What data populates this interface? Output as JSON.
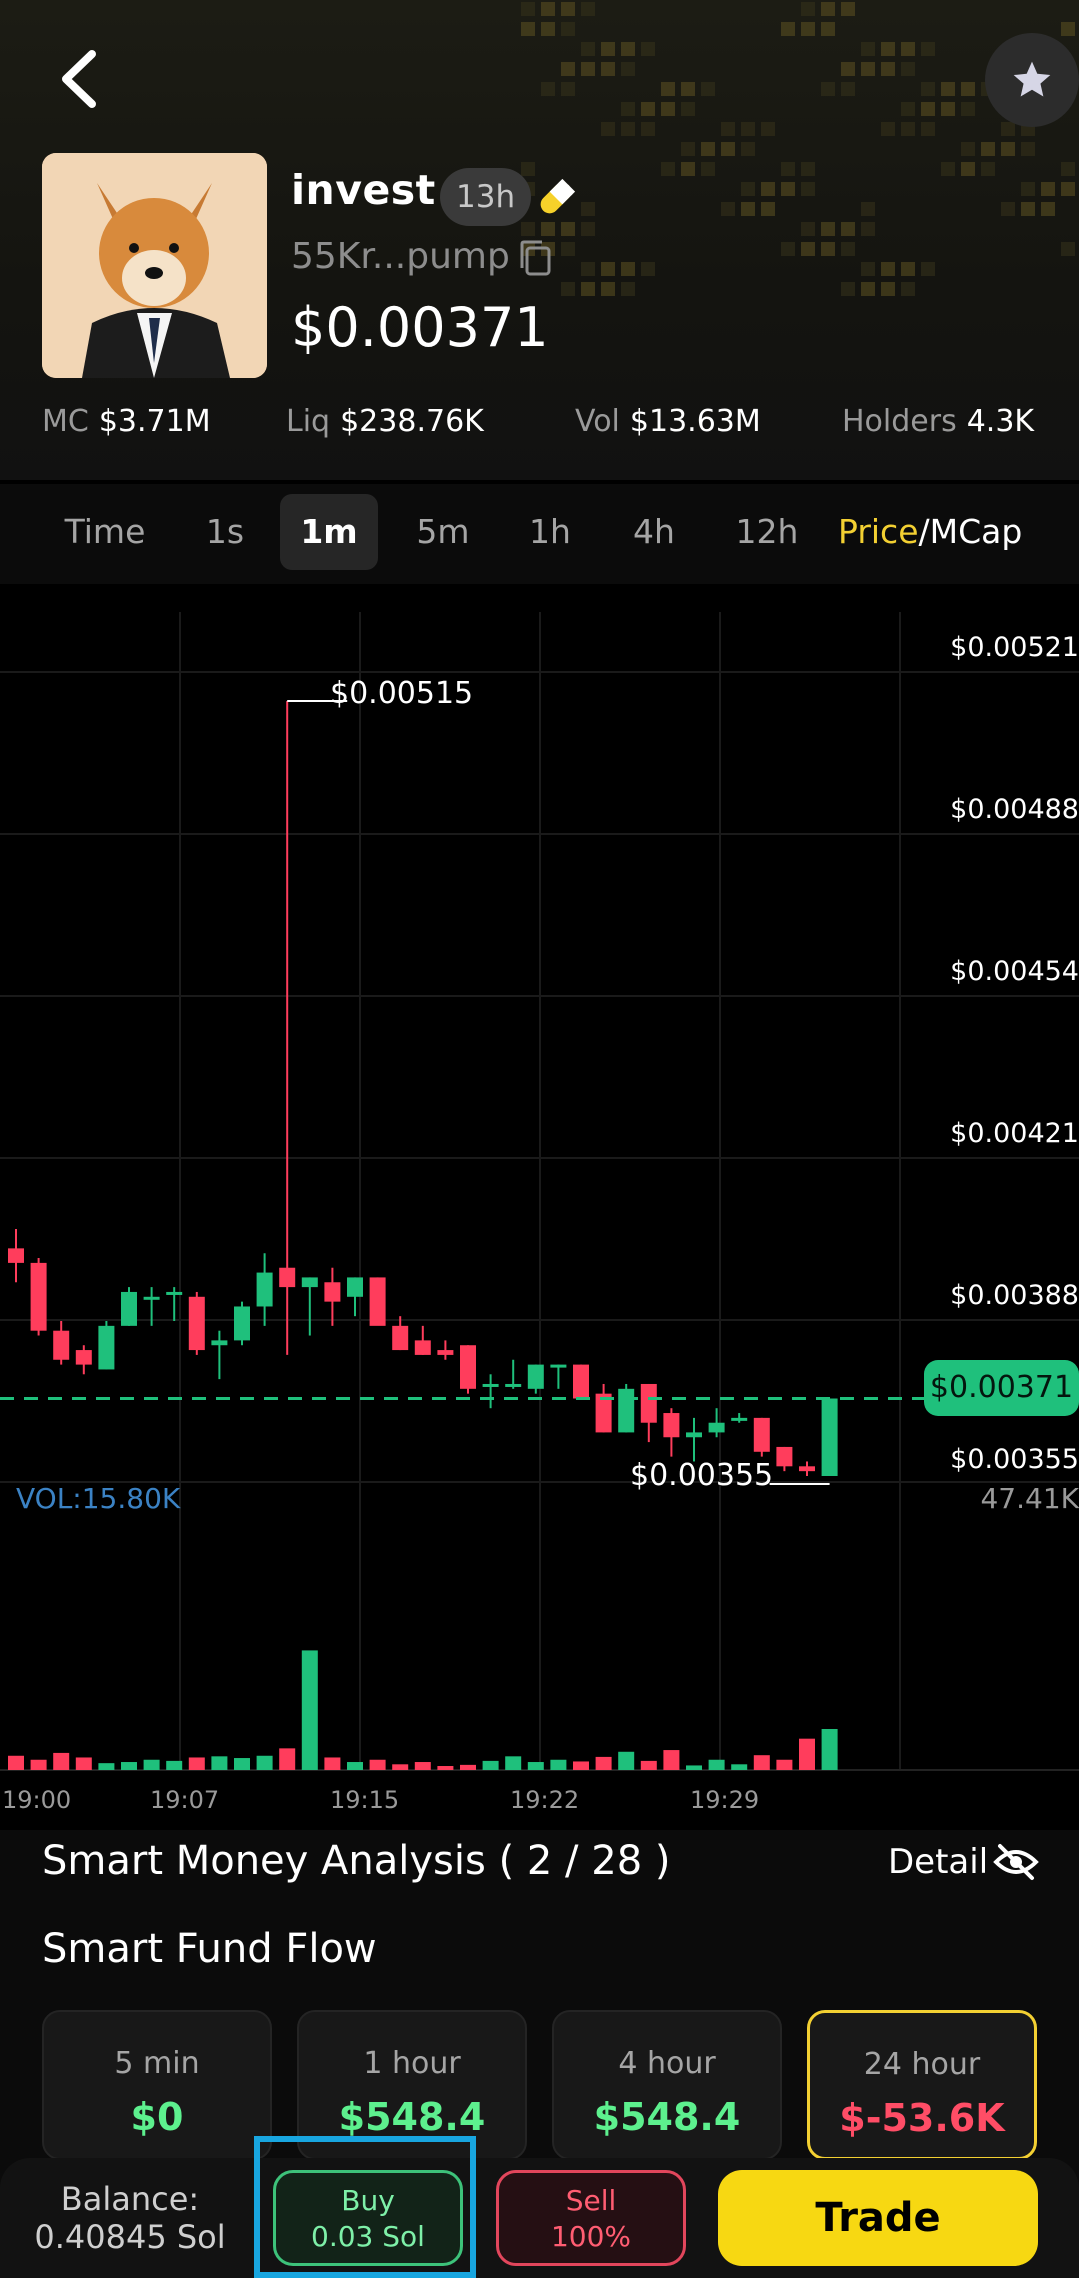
{
  "token": {
    "name": "invest",
    "age": "13h",
    "address": "55Kr...pump",
    "price": "$0.00371"
  },
  "stats": {
    "mc_label": "MC",
    "mc_value": "$3.71M",
    "liq_label": "Liq",
    "liq_value": "$238.76K",
    "vol_label": "Vol",
    "vol_value": "$13.63M",
    "holders_label": "Holders",
    "holders_value": "4.3K"
  },
  "timeframes": {
    "items": [
      "Time",
      "1s",
      "1m",
      "5m",
      "1h",
      "4h",
      "12h"
    ],
    "active": "1m",
    "price_label": "Price",
    "mcap_label": "/MCap"
  },
  "chart_data": {
    "type": "candlestick",
    "y_axis_labels": [
      "$0.00521",
      "$0.00488",
      "$0.00454",
      "$0.00421",
      "$0.00388",
      "$0.00355"
    ],
    "current_price_label": "$0.00371",
    "high_label": "$0.00515",
    "low_label": "$0.00355",
    "volume_label": "VOL:15.80K",
    "volume_axis_label": "47.41K",
    "x_axis_labels": [
      "19:00",
      "19:07",
      "19:15",
      "19:22",
      "19:29"
    ],
    "colors": {
      "up": "#1fc07c",
      "down": "#ff3d5c"
    },
    "candles": [
      {
        "o": 0.00402,
        "h": 0.00406,
        "l": 0.00395,
        "c": 0.00399
      },
      {
        "o": 0.00399,
        "h": 0.004,
        "l": 0.00384,
        "c": 0.00385
      },
      {
        "o": 0.00385,
        "h": 0.00387,
        "l": 0.00378,
        "c": 0.00379
      },
      {
        "o": 0.00381,
        "h": 0.00382,
        "l": 0.00376,
        "c": 0.00378
      },
      {
        "o": 0.00377,
        "h": 0.00387,
        "l": 0.00377,
        "c": 0.00386
      },
      {
        "o": 0.00386,
        "h": 0.00394,
        "l": 0.00386,
        "c": 0.00393
      },
      {
        "o": 0.00392,
        "h": 0.00394,
        "l": 0.00386,
        "c": 0.00392
      },
      {
        "o": 0.00393,
        "h": 0.00394,
        "l": 0.00387,
        "c": 0.00393
      },
      {
        "o": 0.00392,
        "h": 0.00393,
        "l": 0.0038,
        "c": 0.00381
      },
      {
        "o": 0.00382,
        "h": 0.00385,
        "l": 0.00375,
        "c": 0.00383
      },
      {
        "o": 0.00383,
        "h": 0.00391,
        "l": 0.00382,
        "c": 0.0039
      },
      {
        "o": 0.0039,
        "h": 0.00401,
        "l": 0.00386,
        "c": 0.00397
      },
      {
        "o": 0.00398,
        "h": 0.00515,
        "l": 0.0038,
        "c": 0.00394
      },
      {
        "o": 0.00394,
        "h": 0.00396,
        "l": 0.00384,
        "c": 0.00396
      },
      {
        "o": 0.00395,
        "h": 0.00398,
        "l": 0.00386,
        "c": 0.00391
      },
      {
        "o": 0.00392,
        "h": 0.00396,
        "l": 0.00388,
        "c": 0.00396
      },
      {
        "o": 0.00396,
        "h": 0.00396,
        "l": 0.00387,
        "c": 0.00386
      },
      {
        "o": 0.00386,
        "h": 0.00388,
        "l": 0.00381,
        "c": 0.00381
      },
      {
        "o": 0.00383,
        "h": 0.00386,
        "l": 0.0038,
        "c": 0.0038
      },
      {
        "o": 0.00381,
        "h": 0.00383,
        "l": 0.00379,
        "c": 0.0038
      },
      {
        "o": 0.00382,
        "h": 0.00382,
        "l": 0.00372,
        "c": 0.00373
      },
      {
        "o": 0.00374,
        "h": 0.00376,
        "l": 0.00369,
        "c": 0.00374
      },
      {
        "o": 0.00374,
        "h": 0.00379,
        "l": 0.00373,
        "c": 0.00374
      },
      {
        "o": 0.00373,
        "h": 0.00378,
        "l": 0.00372,
        "c": 0.00378
      },
      {
        "o": 0.00378,
        "h": 0.00378,
        "l": 0.00373,
        "c": 0.00378
      },
      {
        "o": 0.00378,
        "h": 0.00378,
        "l": 0.00372,
        "c": 0.00371
      },
      {
        "o": 0.00372,
        "h": 0.00374,
        "l": 0.00364,
        "c": 0.00364
      },
      {
        "o": 0.00364,
        "h": 0.00374,
        "l": 0.00364,
        "c": 0.00373
      },
      {
        "o": 0.00374,
        "h": 0.00374,
        "l": 0.00362,
        "c": 0.00366
      },
      {
        "o": 0.00368,
        "h": 0.00369,
        "l": 0.00359,
        "c": 0.00363
      },
      {
        "o": 0.00363,
        "h": 0.00367,
        "l": 0.00358,
        "c": 0.00364
      },
      {
        "o": 0.00364,
        "h": 0.00369,
        "l": 0.00363,
        "c": 0.00366
      },
      {
        "o": 0.00367,
        "h": 0.00368,
        "l": 0.00366,
        "c": 0.00367
      },
      {
        "o": 0.00367,
        "h": 0.00367,
        "l": 0.00359,
        "c": 0.0036
      },
      {
        "o": 0.00361,
        "h": 0.00361,
        "l": 0.00356,
        "c": 0.00357
      },
      {
        "o": 0.00357,
        "h": 0.00358,
        "l": 0.00355,
        "c": 0.00356
      },
      {
        "o": 0.00355,
        "h": 0.00371,
        "l": 0.00355,
        "c": 0.00371
      }
    ],
    "volumes": [
      2.5,
      1.8,
      3.0,
      2.2,
      1.2,
      1.4,
      1.8,
      1.6,
      2.2,
      2.4,
      2.1,
      2.5,
      3.8,
      21.0,
      2.2,
      1.4,
      1.8,
      1.0,
      1.4,
      0.7,
      0.9,
      1.6,
      2.4,
      1.4,
      1.8,
      1.5,
      2.3,
      3.2,
      1.6,
      3.5,
      0.8,
      1.8,
      1.0,
      2.6,
      1.8,
      5.5,
      7.2
    ]
  },
  "smart_money": {
    "title": "Smart Money Analysis ( 2 / 28 )",
    "detail_label": "Detail",
    "fund_flow_title": "Smart Fund Flow",
    "cards": [
      {
        "label": "5 min",
        "value": "$0",
        "color": "#5df08e"
      },
      {
        "label": "1 hour",
        "value": "$548.4",
        "color": "#5df08e"
      },
      {
        "label": "4 hour",
        "value": "$548.4",
        "color": "#5df08e"
      },
      {
        "label": "24 hour",
        "value": "$-53.6K",
        "color": "#ff4d66"
      }
    ]
  },
  "bottom_bar": {
    "balance_label": "Balance:",
    "balance_value": "0.40845 Sol",
    "buy_label": "Buy",
    "buy_amount": "0.03 Sol",
    "sell_label": "Sell",
    "sell_amount": "100%",
    "trade_label": "Trade"
  }
}
